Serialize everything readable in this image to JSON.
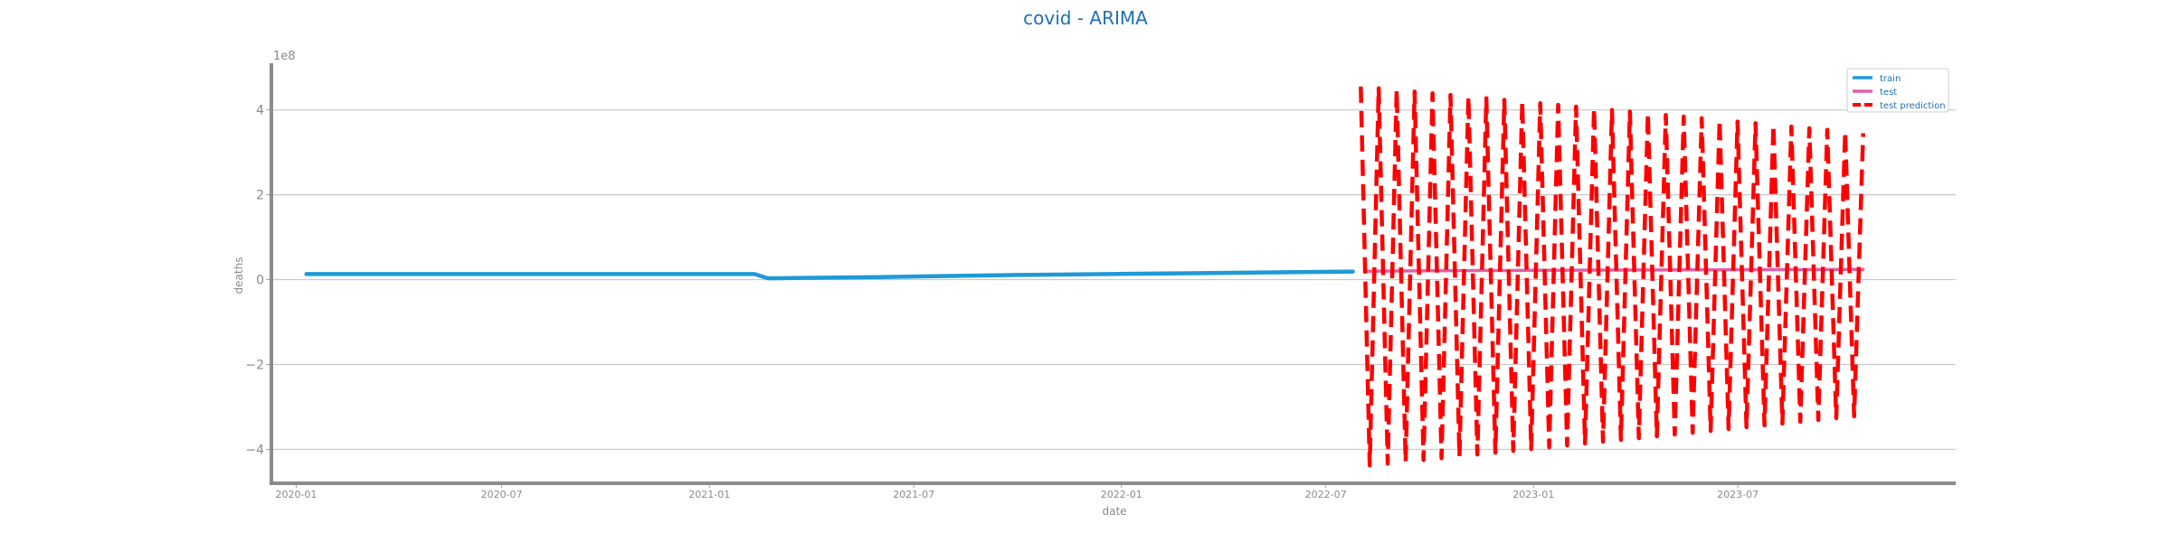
{
  "chart_data": {
    "type": "line",
    "title": "covid - ARIMA",
    "xlabel": "date",
    "ylabel": "deaths",
    "y_offset_label": "1e8",
    "y_scale": 100000000,
    "xlim": [
      "2019-12-10",
      "2024-01-10"
    ],
    "ylim": [
      -4.8,
      5.1
    ],
    "x_ticks": [
      {
        "date": "2020-01-01",
        "label": "2020-01"
      },
      {
        "date": "2020-07-01",
        "label": "2020-07"
      },
      {
        "date": "2021-01-01",
        "label": "2021-01"
      },
      {
        "date": "2021-07-01",
        "label": "2021-07"
      },
      {
        "date": "2022-01-01",
        "label": "2022-01"
      },
      {
        "date": "2022-07-01",
        "label": "2022-07"
      },
      {
        "date": "2023-01-01",
        "label": "2023-01"
      },
      {
        "date": "2023-07-01",
        "label": "2023-07"
      }
    ],
    "y_ticks": [
      {
        "value": 4,
        "label": "4"
      },
      {
        "value": 2,
        "label": "2"
      },
      {
        "value": 0,
        "label": "0"
      },
      {
        "value": -2,
        "label": "−2"
      },
      {
        "value": -4,
        "label": "−4"
      }
    ],
    "grid": {
      "y": true,
      "x": false
    },
    "legend": {
      "position": "top-right",
      "entries": [
        "train",
        "test",
        "test prediction"
      ]
    },
    "series": [
      {
        "name": "train",
        "color": "#1f9ad6",
        "style": "solid",
        "points": [
          {
            "x": "2020-01-10",
            "y": 0.13
          },
          {
            "x": "2021-02-10",
            "y": 0.13
          },
          {
            "x": "2021-02-22",
            "y": 0.03
          },
          {
            "x": "2021-06-01",
            "y": 0.06
          },
          {
            "x": "2021-10-01",
            "y": 0.11
          },
          {
            "x": "2022-03-01",
            "y": 0.15
          },
          {
            "x": "2022-07-25",
            "y": 0.19
          }
        ]
      },
      {
        "name": "test",
        "color": "#e060a8",
        "style": "solid",
        "points": [
          {
            "x": "2022-08-05",
            "y": 0.2
          },
          {
            "x": "2023-01-01",
            "y": 0.22
          },
          {
            "x": "2023-10-20",
            "y": 0.24
          }
        ]
      },
      {
        "name": "test prediction",
        "color": "#ff0000",
        "style": "dashed",
        "x_start": "2022-08-01",
        "x_end": "2023-10-20",
        "cycles": 28,
        "upper_start": 4.55,
        "upper_end": 3.45,
        "lower_start": -4.4,
        "lower_end": -3.2
      }
    ]
  }
}
